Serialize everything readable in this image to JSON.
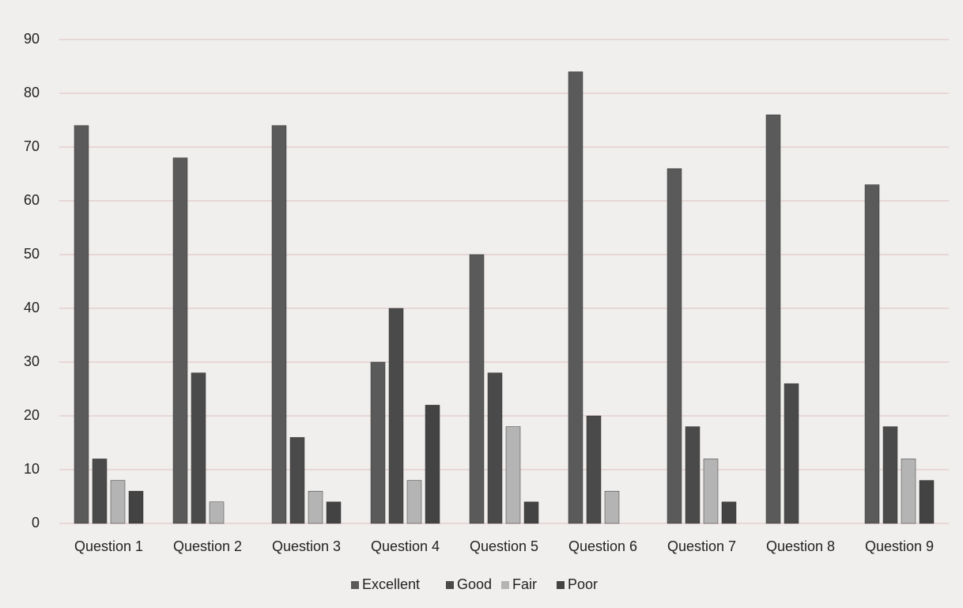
{
  "chart_data": {
    "type": "bar",
    "categories": [
      "Question 1",
      "Question 2",
      "Question 3",
      "Question 4",
      "Question 5",
      "Question 6",
      "Question 7",
      "Question 8",
      "Question 9"
    ],
    "series": [
      {
        "name": "Excellent",
        "color": "#5a5a5a",
        "values": [
          74,
          68,
          74,
          30,
          50,
          84,
          66,
          76,
          63
        ]
      },
      {
        "name": "Good",
        "color": "#4a4a4a",
        "values": [
          12,
          28,
          16,
          40,
          28,
          20,
          18,
          26,
          18
        ]
      },
      {
        "name": "Fair",
        "color": "#b4b4b4",
        "values": [
          8,
          4,
          6,
          8,
          18,
          6,
          12,
          0,
          12
        ]
      },
      {
        "name": "Poor",
        "color": "#434343",
        "values": [
          6,
          0,
          4,
          22,
          4,
          0,
          4,
          0,
          8
        ]
      }
    ],
    "ylim": [
      0,
      90
    ],
    "yticks": [
      0,
      10,
      20,
      30,
      40,
      50,
      60,
      70,
      80,
      90
    ],
    "grid": true,
    "legend": "bottom"
  }
}
